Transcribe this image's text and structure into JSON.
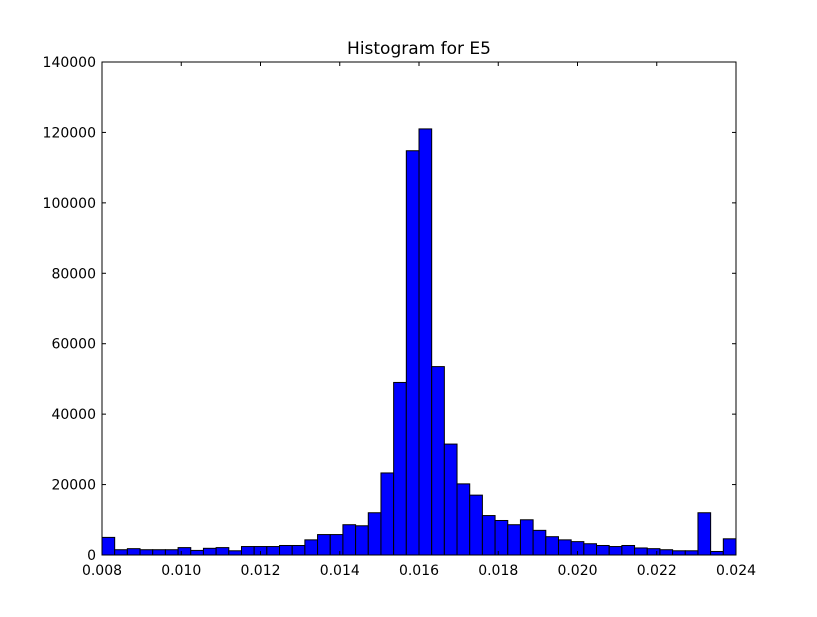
{
  "chart_data": {
    "type": "bar",
    "title": "Histogram for E5",
    "xlabel": "",
    "ylabel": "",
    "xlim": [
      0.008,
      0.024
    ],
    "ylim": [
      0,
      140000
    ],
    "grid": false,
    "bar_color": "#0000ff",
    "edge_color": "#000000",
    "x_ticks": [
      "0.008",
      "0.010",
      "0.012",
      "0.014",
      "0.016",
      "0.018",
      "0.020",
      "0.022",
      "0.024"
    ],
    "y_ticks": [
      "0",
      "20000",
      "40000",
      "60000",
      "80000",
      "100000",
      "120000",
      "140000"
    ],
    "bin_width": 0.00032,
    "bin_starts": [
      0.008,
      0.00832,
      0.00864,
      0.00896,
      0.00928,
      0.0096,
      0.00992,
      0.01024,
      0.01056,
      0.01088,
      0.0112,
      0.01152,
      0.01184,
      0.01216,
      0.01248,
      0.0128,
      0.01312,
      0.01344,
      0.01376,
      0.01408,
      0.0144,
      0.01472,
      0.01504,
      0.01536,
      0.01568,
      0.016,
      0.01632,
      0.01664,
      0.01696,
      0.01728,
      0.0176,
      0.01792,
      0.01824,
      0.01856,
      0.01888,
      0.0192,
      0.01952,
      0.01984,
      0.02016,
      0.02048,
      0.0208,
      0.02112,
      0.02144,
      0.02176,
      0.02208,
      0.0224,
      0.02272,
      0.02304,
      0.02336,
      0.02368
    ],
    "values": [
      5000,
      1500,
      1800,
      1500,
      1500,
      1500,
      2100,
      1300,
      1900,
      2100,
      1200,
      2400,
      2400,
      2400,
      2700,
      2700,
      4300,
      5800,
      5800,
      8600,
      8300,
      12000,
      23300,
      49000,
      114800,
      121000,
      53500,
      31500,
      20200,
      17000,
      11200,
      9800,
      8600,
      10000,
      7000,
      5200,
      4300,
      3800,
      3200,
      2700,
      2400,
      2700,
      2000,
      1800,
      1500,
      1200,
      1200,
      12000,
      1000,
      4600
    ]
  }
}
